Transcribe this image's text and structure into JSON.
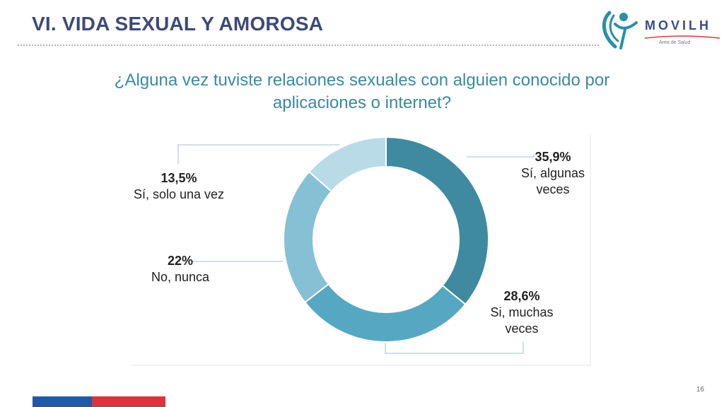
{
  "header": {
    "title": "VI. VIDA SEXUAL Y AMOROSA",
    "logo_name": "MOVILH",
    "logo_subtitle": "Área de Salud"
  },
  "question": "¿Alguna vez tuviste relaciones sexuales con alguien conocido por aplicaciones o internet?",
  "chart_data": {
    "type": "pie",
    "donut": true,
    "title": "¿Alguna vez tuviste relaciones sexuales con alguien conocido por aplicaciones o internet?",
    "slices": [
      {
        "label": "Sí, algunas veces",
        "value": 35.9,
        "display": "35,9%",
        "color": "#3f8aa0"
      },
      {
        "label": "Si, muchas veces",
        "value": 28.6,
        "display": "28,6%",
        "color": "#56a8c2"
      },
      {
        "label": "No, nunca",
        "value": 22.0,
        "display": "22%",
        "color": "#86c0d4"
      },
      {
        "label": "Sí, solo una vez",
        "value": 13.5,
        "display": "13,5%",
        "color": "#b8dbe7"
      }
    ]
  },
  "labels": {
    "s1": {
      "pct": "35,9%",
      "line1": "Sí, algunas",
      "line2": "veces"
    },
    "s2": {
      "pct": "28,6%",
      "line1": "Si, muchas",
      "line2": "veces"
    },
    "s3": {
      "pct": "22%",
      "line1": "No, nunca"
    },
    "s4": {
      "pct": "13,5%",
      "line1": "Sí, solo una vez"
    }
  },
  "footer": {
    "page_number": "16",
    "flag_colors": [
      "#1f5aa8",
      "#e0323c"
    ]
  }
}
